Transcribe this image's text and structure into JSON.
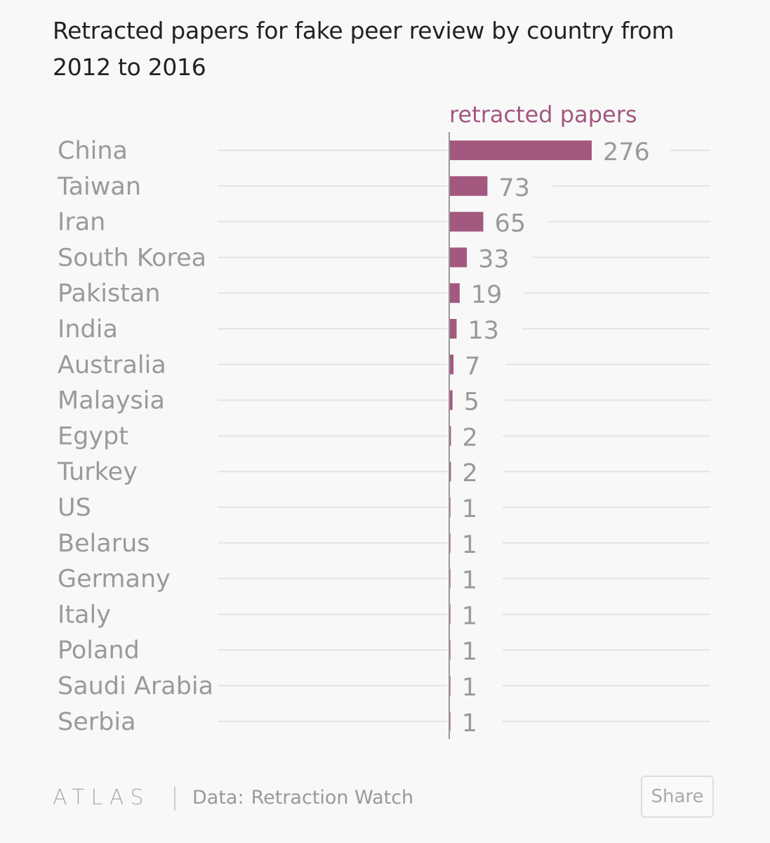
{
  "title": "Retracted papers for fake peer review by country from 2012 to 2016",
  "colors": {
    "bar": "#a3587f",
    "label": "#9a9a9a",
    "value": "#9a9a9a",
    "grid": "#e4e4e4",
    "axis": "#999999",
    "series_label": "#a3587f"
  },
  "chart_data": {
    "type": "bar",
    "orientation": "horizontal",
    "title": "Retracted papers for fake peer review by country from 2012 to 2016",
    "series": [
      {
        "name": "retracted papers",
        "values": [
          276,
          73,
          65,
          33,
          19,
          13,
          7,
          5,
          2,
          2,
          1,
          1,
          1,
          1,
          1,
          1,
          1
        ]
      }
    ],
    "categories": [
      "China",
      "Taiwan",
      "Iran",
      "South Korea",
      "Pakistan",
      "India",
      "Australia",
      "Malaysia",
      "Egypt",
      "Turkey",
      "US",
      "Belarus",
      "Germany",
      "Italy",
      "Poland",
      "Saudi Arabia",
      "Serbia"
    ],
    "xlim": [
      0,
      276
    ],
    "grid": true,
    "data_labels": true
  },
  "footer": {
    "logo": "ATLAS",
    "source_key": "Data:",
    "source_value": "Retraction Watch",
    "share_label": "Share"
  }
}
